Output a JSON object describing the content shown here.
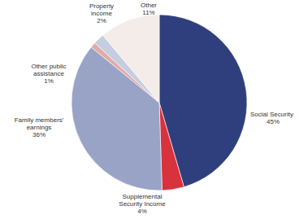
{
  "chart_data": {
    "type": "pie",
    "categories": [
      "Social Security",
      "Supplemental Security Income",
      "Family members' earnings",
      "Other public assistance",
      "Property income",
      "Other"
    ],
    "values": [
      45,
      4,
      36,
      1,
      2,
      11
    ],
    "value_labels": [
      "45%",
      "4%",
      "36%",
      "1%",
      "2%",
      "11%"
    ],
    "colors": [
      "#2f3f7e",
      "#d8323c",
      "#98a3c6",
      "#e3aaa6",
      "#c5cde0",
      "#f3ece8"
    ],
    "data_labels": true
  }
}
